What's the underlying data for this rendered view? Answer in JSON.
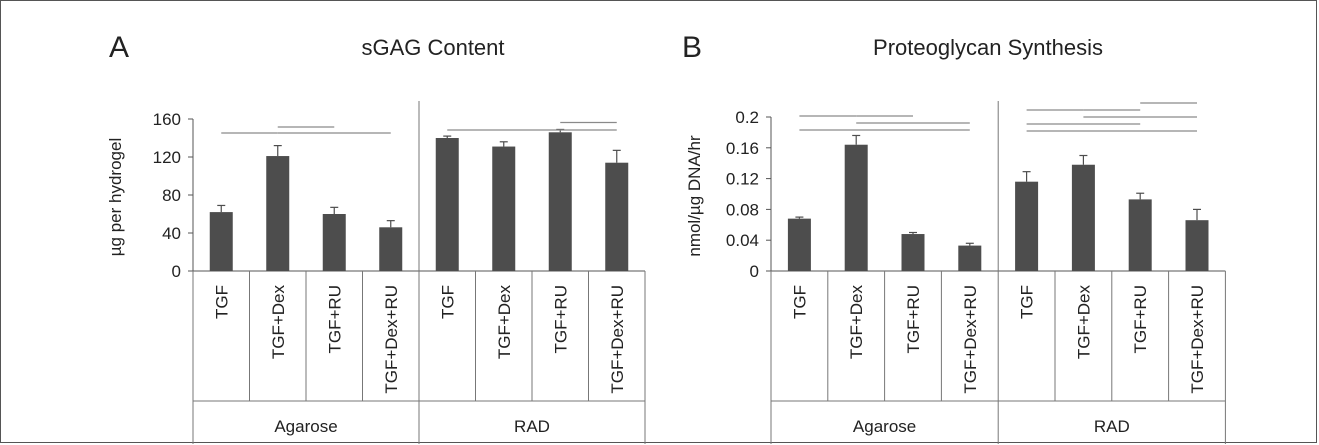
{
  "chart_data": [
    {
      "panel": "A",
      "type": "bar",
      "title": "sGAG Content",
      "ylabel": "µg per hydrogel",
      "ylim": [
        0,
        160
      ],
      "yticks": [
        "0",
        "40",
        "80",
        "120",
        "160"
      ],
      "yticks_values": [
        0,
        40,
        80,
        120,
        160
      ],
      "groups": [
        {
          "name": "Agarose",
          "categories": [
            "TGF",
            "TGF+Dex",
            "TGF+RU",
            "TGF+Dex+RU"
          ]
        },
        {
          "name": "RAD",
          "categories": [
            "TGF",
            "TGF+Dex",
            "TGF+RU",
            "TGF+Dex+RU"
          ]
        }
      ],
      "values": [
        62,
        121,
        60,
        46,
        140,
        131,
        146,
        114
      ],
      "errors": [
        7,
        11,
        7,
        7,
        2,
        5,
        3,
        13
      ],
      "significance": [
        {
          "from": 0,
          "to": 1,
          "level": 0
        },
        {
          "from": 1,
          "to": 2,
          "level": 1
        },
        {
          "from": 1,
          "to": 3,
          "level": 0
        },
        {
          "from": 4,
          "to": 7,
          "level": 0
        },
        {
          "from": 6,
          "to": 7,
          "level": 1
        }
      ]
    },
    {
      "panel": "B",
      "type": "bar",
      "title": "Proteoglycan Synthesis",
      "ylabel": "nmol/µg DNA/hr",
      "ylim": [
        0,
        0.2
      ],
      "yticks": [
        "0",
        "0.04",
        "0.08",
        "0.12",
        "0.16",
        "0.2"
      ],
      "yticks_values": [
        0,
        0.04,
        0.08,
        0.12,
        0.16,
        0.2
      ],
      "groups": [
        {
          "name": "Agarose",
          "categories": [
            "TGF",
            "TGF+Dex",
            "TGF+RU",
            "TGF+Dex+RU"
          ]
        },
        {
          "name": "RAD",
          "categories": [
            "TGF",
            "TGF+Dex",
            "TGF+RU",
            "TGF+Dex+RU"
          ]
        }
      ],
      "values": [
        0.068,
        0.164,
        0.048,
        0.033,
        0.116,
        0.138,
        0.093,
        0.066
      ],
      "errors": [
        0.002,
        0.012,
        0.002,
        0.003,
        0.013,
        0.012,
        0.008,
        0.014
      ],
      "significance": [
        {
          "from": 0,
          "to": 3,
          "level": 0
        },
        {
          "from": 1,
          "to": 3,
          "level": 1
        },
        {
          "from": 0,
          "to": 1,
          "level": 2
        },
        {
          "from": 1,
          "to": 2,
          "level": 2
        },
        {
          "from": 4,
          "to": 7,
          "level": 0
        },
        {
          "from": 4,
          "to": 6,
          "level": 1
        },
        {
          "from": 5,
          "to": 7,
          "level": 2
        },
        {
          "from": 5,
          "to": 6,
          "level": 3
        },
        {
          "from": 4,
          "to": 5,
          "level": 3
        },
        {
          "from": 6,
          "to": 7,
          "level": 4
        }
      ]
    }
  ],
  "colors": {
    "bar": "#4d4d4d",
    "axis": "#555555",
    "line": "#777777",
    "sig": "#8a8a8a"
  }
}
